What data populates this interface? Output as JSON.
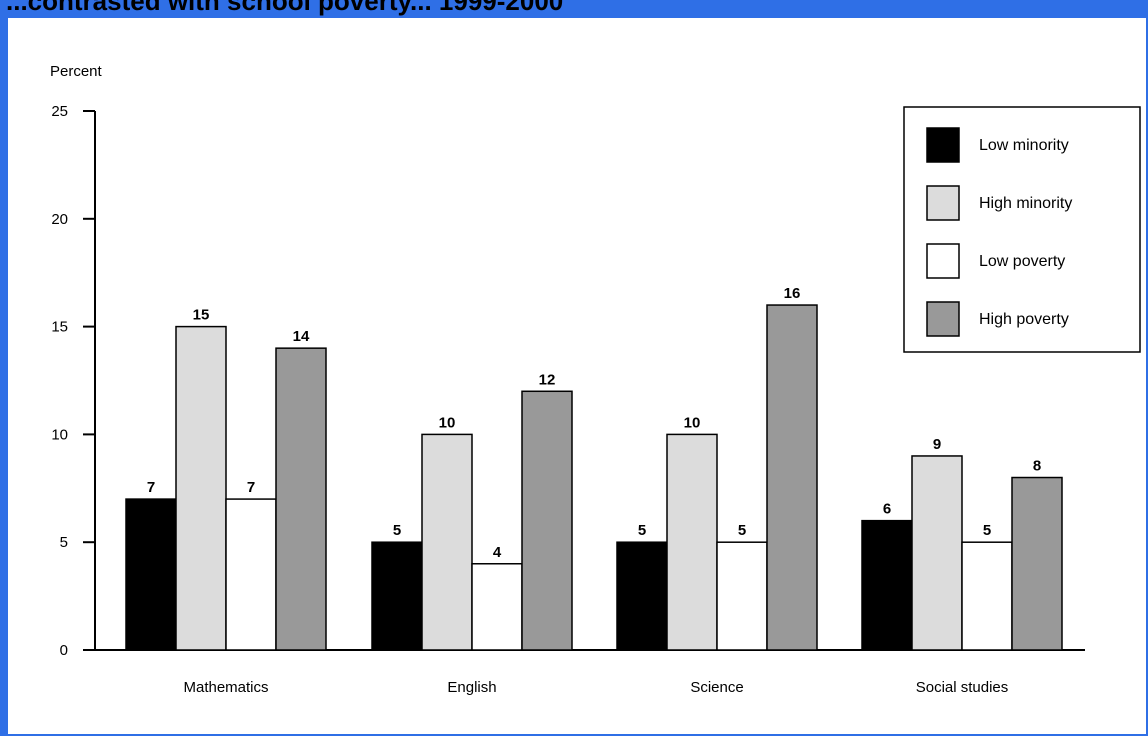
{
  "page": {
    "header_text": "...contrasted with school poverty... 1999-2000",
    "frame_color": "#2f6fe6"
  },
  "chart_data": {
    "type": "bar",
    "title": "",
    "xlabel": "",
    "ylabel": "Percent",
    "ylim": [
      0,
      25
    ],
    "yticks": [
      0,
      5,
      10,
      15,
      20,
      25
    ],
    "ytick_labels": [
      "0",
      "5",
      "10",
      "15",
      "20",
      "25"
    ],
    "grid": false,
    "legend_position": "top-right",
    "categories": [
      "Mathematics",
      "English",
      "Science",
      "Social studies"
    ],
    "series": [
      {
        "name": "Low minority",
        "color": "#000000",
        "values": [
          7,
          5,
          5,
          6
        ]
      },
      {
        "name": "High minority",
        "color": "#dcdcdc",
        "values": [
          15,
          10,
          10,
          9
        ]
      },
      {
        "name": "Low poverty",
        "color": "#ffffff",
        "values": [
          7,
          4,
          5,
          5
        ]
      },
      {
        "name": "High poverty",
        "color": "#999999",
        "values": [
          14,
          12,
          16,
          8
        ]
      }
    ]
  }
}
